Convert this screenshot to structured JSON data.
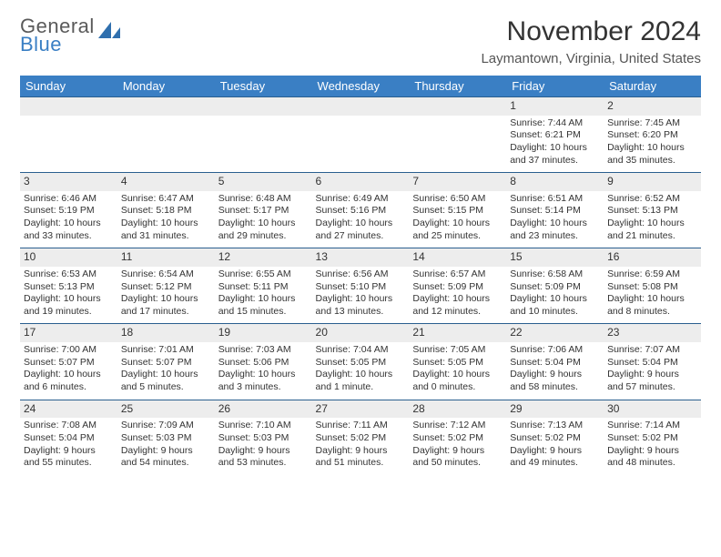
{
  "logo": {
    "top": "General",
    "bottom": "Blue",
    "shape_color": "#2f6fae"
  },
  "header": {
    "month_title": "November 2024",
    "location": "Laymantown, Virginia, United States"
  },
  "colors": {
    "header_bg": "#3a7fc4",
    "header_text": "#ffffff",
    "band_bg": "#ededed",
    "band_border": "#2a5f8f",
    "body_text": "#333333"
  },
  "days_of_week": [
    "Sunday",
    "Monday",
    "Tuesday",
    "Wednesday",
    "Thursday",
    "Friday",
    "Saturday"
  ],
  "weeks": [
    [
      {
        "blank": true
      },
      {
        "blank": true
      },
      {
        "blank": true
      },
      {
        "blank": true
      },
      {
        "blank": true
      },
      {
        "n": "1",
        "sunrise": "Sunrise: 7:44 AM",
        "sunset": "Sunset: 6:21 PM",
        "daylight": "Daylight: 10 hours and 37 minutes."
      },
      {
        "n": "2",
        "sunrise": "Sunrise: 7:45 AM",
        "sunset": "Sunset: 6:20 PM",
        "daylight": "Daylight: 10 hours and 35 minutes."
      }
    ],
    [
      {
        "n": "3",
        "sunrise": "Sunrise: 6:46 AM",
        "sunset": "Sunset: 5:19 PM",
        "daylight": "Daylight: 10 hours and 33 minutes."
      },
      {
        "n": "4",
        "sunrise": "Sunrise: 6:47 AM",
        "sunset": "Sunset: 5:18 PM",
        "daylight": "Daylight: 10 hours and 31 minutes."
      },
      {
        "n": "5",
        "sunrise": "Sunrise: 6:48 AM",
        "sunset": "Sunset: 5:17 PM",
        "daylight": "Daylight: 10 hours and 29 minutes."
      },
      {
        "n": "6",
        "sunrise": "Sunrise: 6:49 AM",
        "sunset": "Sunset: 5:16 PM",
        "daylight": "Daylight: 10 hours and 27 minutes."
      },
      {
        "n": "7",
        "sunrise": "Sunrise: 6:50 AM",
        "sunset": "Sunset: 5:15 PM",
        "daylight": "Daylight: 10 hours and 25 minutes."
      },
      {
        "n": "8",
        "sunrise": "Sunrise: 6:51 AM",
        "sunset": "Sunset: 5:14 PM",
        "daylight": "Daylight: 10 hours and 23 minutes."
      },
      {
        "n": "9",
        "sunrise": "Sunrise: 6:52 AM",
        "sunset": "Sunset: 5:13 PM",
        "daylight": "Daylight: 10 hours and 21 minutes."
      }
    ],
    [
      {
        "n": "10",
        "sunrise": "Sunrise: 6:53 AM",
        "sunset": "Sunset: 5:13 PM",
        "daylight": "Daylight: 10 hours and 19 minutes."
      },
      {
        "n": "11",
        "sunrise": "Sunrise: 6:54 AM",
        "sunset": "Sunset: 5:12 PM",
        "daylight": "Daylight: 10 hours and 17 minutes."
      },
      {
        "n": "12",
        "sunrise": "Sunrise: 6:55 AM",
        "sunset": "Sunset: 5:11 PM",
        "daylight": "Daylight: 10 hours and 15 minutes."
      },
      {
        "n": "13",
        "sunrise": "Sunrise: 6:56 AM",
        "sunset": "Sunset: 5:10 PM",
        "daylight": "Daylight: 10 hours and 13 minutes."
      },
      {
        "n": "14",
        "sunrise": "Sunrise: 6:57 AM",
        "sunset": "Sunset: 5:09 PM",
        "daylight": "Daylight: 10 hours and 12 minutes."
      },
      {
        "n": "15",
        "sunrise": "Sunrise: 6:58 AM",
        "sunset": "Sunset: 5:09 PM",
        "daylight": "Daylight: 10 hours and 10 minutes."
      },
      {
        "n": "16",
        "sunrise": "Sunrise: 6:59 AM",
        "sunset": "Sunset: 5:08 PM",
        "daylight": "Daylight: 10 hours and 8 minutes."
      }
    ],
    [
      {
        "n": "17",
        "sunrise": "Sunrise: 7:00 AM",
        "sunset": "Sunset: 5:07 PM",
        "daylight": "Daylight: 10 hours and 6 minutes."
      },
      {
        "n": "18",
        "sunrise": "Sunrise: 7:01 AM",
        "sunset": "Sunset: 5:07 PM",
        "daylight": "Daylight: 10 hours and 5 minutes."
      },
      {
        "n": "19",
        "sunrise": "Sunrise: 7:03 AM",
        "sunset": "Sunset: 5:06 PM",
        "daylight": "Daylight: 10 hours and 3 minutes."
      },
      {
        "n": "20",
        "sunrise": "Sunrise: 7:04 AM",
        "sunset": "Sunset: 5:05 PM",
        "daylight": "Daylight: 10 hours and 1 minute."
      },
      {
        "n": "21",
        "sunrise": "Sunrise: 7:05 AM",
        "sunset": "Sunset: 5:05 PM",
        "daylight": "Daylight: 10 hours and 0 minutes."
      },
      {
        "n": "22",
        "sunrise": "Sunrise: 7:06 AM",
        "sunset": "Sunset: 5:04 PM",
        "daylight": "Daylight: 9 hours and 58 minutes."
      },
      {
        "n": "23",
        "sunrise": "Sunrise: 7:07 AM",
        "sunset": "Sunset: 5:04 PM",
        "daylight": "Daylight: 9 hours and 57 minutes."
      }
    ],
    [
      {
        "n": "24",
        "sunrise": "Sunrise: 7:08 AM",
        "sunset": "Sunset: 5:04 PM",
        "daylight": "Daylight: 9 hours and 55 minutes."
      },
      {
        "n": "25",
        "sunrise": "Sunrise: 7:09 AM",
        "sunset": "Sunset: 5:03 PM",
        "daylight": "Daylight: 9 hours and 54 minutes."
      },
      {
        "n": "26",
        "sunrise": "Sunrise: 7:10 AM",
        "sunset": "Sunset: 5:03 PM",
        "daylight": "Daylight: 9 hours and 53 minutes."
      },
      {
        "n": "27",
        "sunrise": "Sunrise: 7:11 AM",
        "sunset": "Sunset: 5:02 PM",
        "daylight": "Daylight: 9 hours and 51 minutes."
      },
      {
        "n": "28",
        "sunrise": "Sunrise: 7:12 AM",
        "sunset": "Sunset: 5:02 PM",
        "daylight": "Daylight: 9 hours and 50 minutes."
      },
      {
        "n": "29",
        "sunrise": "Sunrise: 7:13 AM",
        "sunset": "Sunset: 5:02 PM",
        "daylight": "Daylight: 9 hours and 49 minutes."
      },
      {
        "n": "30",
        "sunrise": "Sunrise: 7:14 AM",
        "sunset": "Sunset: 5:02 PM",
        "daylight": "Daylight: 9 hours and 48 minutes."
      }
    ]
  ]
}
